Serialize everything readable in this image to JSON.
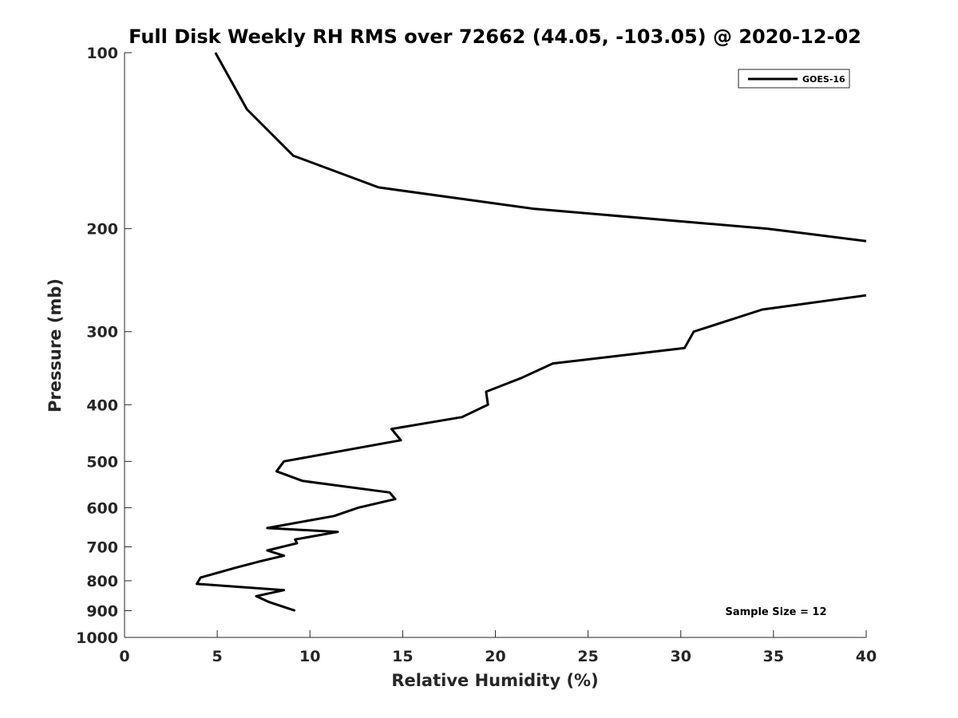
{
  "chart_data": {
    "type": "line",
    "title": "Full Disk Weekly RH RMS over 72662 (44.05, -103.05) @ 2020-12-02",
    "xlabel": "Relative Humidity (%)",
    "ylabel": "Pressure (mb)",
    "xlim": [
      0,
      40
    ],
    "ylim": [
      100,
      1000
    ],
    "yscale": "log",
    "y_reversed": true,
    "x_ticks": [
      0,
      5,
      10,
      15,
      20,
      25,
      30,
      35,
      40
    ],
    "y_ticks": [
      100,
      200,
      300,
      400,
      500,
      600,
      700,
      800,
      900,
      1000
    ],
    "grid": false,
    "legend": {
      "position": "top-right",
      "entries": [
        "GOES-16"
      ]
    },
    "annotation": "Sample Size = 12",
    "series": [
      {
        "name": "GOES-16",
        "color": "#000000",
        "segments": [
          {
            "x": [
              4.9,
              6.6,
              9.1,
              13.7,
              22.1,
              34.7,
              40.0
            ],
            "y": [
              100,
              125,
              150,
              170,
              185,
              200,
              210
            ]
          },
          {
            "x": [
              40.0,
              34.4,
              30.7,
              30.2,
              23.1,
              21.4,
              19.5,
              19.6,
              18.2,
              14.4,
              14.9,
              8.6,
              8.2,
              9.6,
              14.3,
              14.6,
              12.6,
              11.3,
              7.7,
              11.5,
              9.2,
              9.3,
              7.7,
              8.6,
              7.4,
              6.0,
              4.1,
              3.9,
              8.6,
              7.1,
              7.8,
              9.2
            ],
            "y": [
              260,
              275,
              300,
              320,
              340,
              360,
              380,
              400,
              420,
              440,
              460,
              500,
              520,
              540,
              565,
              580,
              600,
              620,
              650,
              660,
              680,
              690,
              710,
              725,
              740,
              760,
              790,
              810,
              830,
              850,
              870,
              900
            ]
          }
        ]
      }
    ]
  }
}
